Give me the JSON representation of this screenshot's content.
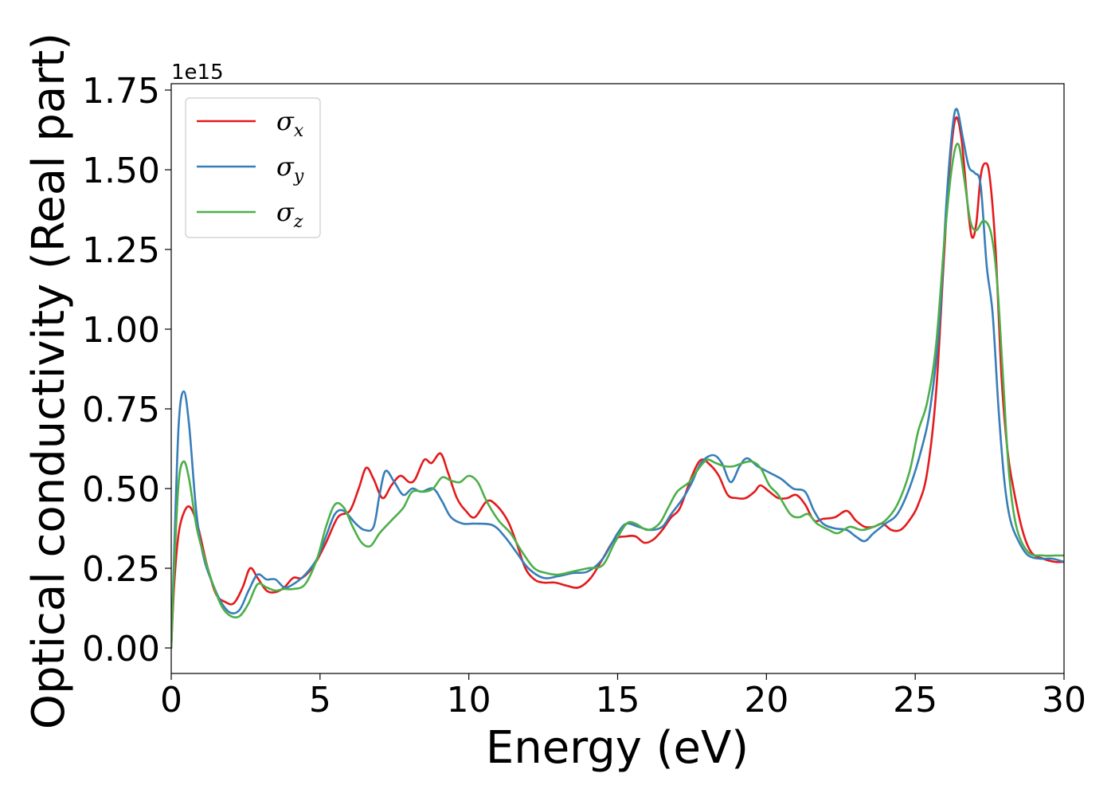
{
  "chart_data": {
    "type": "line",
    "xlabel": "Energy (eV)",
    "ylabel": "Optical conductivity (Real part)",
    "y_offset_label": "1e15",
    "xlim": [
      0,
      30
    ],
    "ylim": [
      -0.08,
      1.77
    ],
    "x_ticks": [
      0,
      5,
      10,
      15,
      20,
      25,
      30
    ],
    "x_tick_labels": [
      "0",
      "5",
      "10",
      "15",
      "20",
      "25",
      "30"
    ],
    "y_ticks": [
      0.0,
      0.25,
      0.5,
      0.75,
      1.0,
      1.25,
      1.5,
      1.75
    ],
    "y_tick_labels": [
      "0.00",
      "0.25",
      "0.50",
      "0.75",
      "1.00",
      "1.25",
      "1.50",
      "1.75"
    ],
    "grid": false,
    "legend_position": "top-left",
    "series": [
      {
        "name": "σ",
        "subscript": "x",
        "color": "#e41a1c",
        "points": [
          [
            0,
            0
          ],
          [
            0.1,
            0.2
          ],
          [
            0.25,
            0.36
          ],
          [
            0.45,
            0.43
          ],
          [
            0.65,
            0.44
          ],
          [
            0.9,
            0.38
          ],
          [
            1.2,
            0.26
          ],
          [
            1.5,
            0.17
          ],
          [
            1.8,
            0.145
          ],
          [
            2.1,
            0.14
          ],
          [
            2.4,
            0.19
          ],
          [
            2.65,
            0.25
          ],
          [
            2.9,
            0.22
          ],
          [
            3.2,
            0.18
          ],
          [
            3.5,
            0.175
          ],
          [
            3.8,
            0.19
          ],
          [
            4.1,
            0.22
          ],
          [
            4.4,
            0.22
          ],
          [
            4.8,
            0.26
          ],
          [
            5.2,
            0.33
          ],
          [
            5.6,
            0.41
          ],
          [
            6.0,
            0.43
          ],
          [
            6.3,
            0.5
          ],
          [
            6.55,
            0.565
          ],
          [
            6.8,
            0.53
          ],
          [
            7.1,
            0.47
          ],
          [
            7.4,
            0.51
          ],
          [
            7.7,
            0.54
          ],
          [
            8.0,
            0.52
          ],
          [
            8.2,
            0.53
          ],
          [
            8.5,
            0.59
          ],
          [
            8.75,
            0.58
          ],
          [
            9.05,
            0.61
          ],
          [
            9.3,
            0.55
          ],
          [
            9.6,
            0.47
          ],
          [
            9.9,
            0.43
          ],
          [
            10.2,
            0.41
          ],
          [
            10.6,
            0.46
          ],
          [
            10.9,
            0.45
          ],
          [
            11.3,
            0.4
          ],
          [
            11.6,
            0.33
          ],
          [
            11.9,
            0.25
          ],
          [
            12.2,
            0.215
          ],
          [
            12.5,
            0.205
          ],
          [
            12.9,
            0.205
          ],
          [
            13.3,
            0.195
          ],
          [
            13.7,
            0.19
          ],
          [
            14.1,
            0.22
          ],
          [
            14.5,
            0.28
          ],
          [
            14.9,
            0.34
          ],
          [
            15.3,
            0.35
          ],
          [
            15.6,
            0.35
          ],
          [
            15.9,
            0.33
          ],
          [
            16.2,
            0.34
          ],
          [
            16.5,
            0.37
          ],
          [
            16.8,
            0.41
          ],
          [
            17.1,
            0.44
          ],
          [
            17.5,
            0.54
          ],
          [
            17.8,
            0.59
          ],
          [
            18.1,
            0.575
          ],
          [
            18.4,
            0.54
          ],
          [
            18.7,
            0.48
          ],
          [
            19.0,
            0.47
          ],
          [
            19.3,
            0.47
          ],
          [
            19.6,
            0.49
          ],
          [
            19.8,
            0.51
          ],
          [
            20.1,
            0.49
          ],
          [
            20.4,
            0.47
          ],
          [
            20.7,
            0.47
          ],
          [
            21.0,
            0.48
          ],
          [
            21.3,
            0.45
          ],
          [
            21.6,
            0.4
          ],
          [
            21.9,
            0.405
          ],
          [
            22.3,
            0.41
          ],
          [
            22.7,
            0.43
          ],
          [
            23.0,
            0.4
          ],
          [
            23.3,
            0.38
          ],
          [
            23.6,
            0.38
          ],
          [
            23.9,
            0.39
          ],
          [
            24.2,
            0.37
          ],
          [
            24.5,
            0.37
          ],
          [
            24.8,
            0.4
          ],
          [
            25.1,
            0.45
          ],
          [
            25.4,
            0.55
          ],
          [
            25.7,
            0.8
          ],
          [
            25.95,
            1.2
          ],
          [
            26.15,
            1.5
          ],
          [
            26.35,
            1.66
          ],
          [
            26.55,
            1.6
          ],
          [
            26.75,
            1.4
          ],
          [
            26.9,
            1.29
          ],
          [
            27.05,
            1.33
          ],
          [
            27.2,
            1.48
          ],
          [
            27.35,
            1.52
          ],
          [
            27.5,
            1.48
          ],
          [
            27.7,
            1.25
          ],
          [
            27.9,
            0.85
          ],
          [
            28.1,
            0.62
          ],
          [
            28.3,
            0.5
          ],
          [
            28.6,
            0.37
          ],
          [
            28.9,
            0.3
          ],
          [
            29.3,
            0.28
          ],
          [
            29.7,
            0.27
          ],
          [
            30,
            0.27
          ]
        ]
      },
      {
        "name": "σ",
        "subscript": "y",
        "color": "#377eb8",
        "points": [
          [
            0,
            0
          ],
          [
            0.1,
            0.3
          ],
          [
            0.25,
            0.7
          ],
          [
            0.42,
            0.805
          ],
          [
            0.6,
            0.7
          ],
          [
            0.85,
            0.42
          ],
          [
            1.1,
            0.28
          ],
          [
            1.4,
            0.2
          ],
          [
            1.7,
            0.14
          ],
          [
            2.0,
            0.11
          ],
          [
            2.3,
            0.12
          ],
          [
            2.6,
            0.18
          ],
          [
            2.9,
            0.23
          ],
          [
            3.2,
            0.215
          ],
          [
            3.5,
            0.215
          ],
          [
            3.8,
            0.19
          ],
          [
            4.1,
            0.2
          ],
          [
            4.5,
            0.23
          ],
          [
            4.9,
            0.28
          ],
          [
            5.2,
            0.35
          ],
          [
            5.5,
            0.42
          ],
          [
            5.8,
            0.43
          ],
          [
            6.2,
            0.39
          ],
          [
            6.5,
            0.37
          ],
          [
            6.8,
            0.38
          ],
          [
            7.0,
            0.48
          ],
          [
            7.2,
            0.555
          ],
          [
            7.5,
            0.52
          ],
          [
            7.8,
            0.48
          ],
          [
            8.1,
            0.5
          ],
          [
            8.4,
            0.49
          ],
          [
            8.8,
            0.5
          ],
          [
            9.1,
            0.46
          ],
          [
            9.4,
            0.41
          ],
          [
            9.8,
            0.39
          ],
          [
            10.2,
            0.39
          ],
          [
            10.8,
            0.385
          ],
          [
            11.2,
            0.35
          ],
          [
            11.6,
            0.3
          ],
          [
            12.0,
            0.25
          ],
          [
            12.5,
            0.22
          ],
          [
            13.0,
            0.225
          ],
          [
            13.5,
            0.235
          ],
          [
            14.0,
            0.24
          ],
          [
            14.5,
            0.28
          ],
          [
            15.0,
            0.36
          ],
          [
            15.3,
            0.39
          ],
          [
            15.7,
            0.38
          ],
          [
            16.1,
            0.37
          ],
          [
            16.5,
            0.38
          ],
          [
            16.8,
            0.42
          ],
          [
            17.2,
            0.47
          ],
          [
            17.5,
            0.52
          ],
          [
            17.8,
            0.58
          ],
          [
            18.2,
            0.605
          ],
          [
            18.5,
            0.58
          ],
          [
            18.8,
            0.52
          ],
          [
            19.1,
            0.57
          ],
          [
            19.35,
            0.595
          ],
          [
            19.7,
            0.57
          ],
          [
            20.1,
            0.55
          ],
          [
            20.5,
            0.53
          ],
          [
            20.9,
            0.5
          ],
          [
            21.3,
            0.49
          ],
          [
            21.6,
            0.43
          ],
          [
            21.9,
            0.39
          ],
          [
            22.3,
            0.375
          ],
          [
            22.7,
            0.37
          ],
          [
            23.0,
            0.35
          ],
          [
            23.3,
            0.335
          ],
          [
            23.6,
            0.36
          ],
          [
            24.0,
            0.39
          ],
          [
            24.4,
            0.42
          ],
          [
            24.8,
            0.5
          ],
          [
            25.2,
            0.62
          ],
          [
            25.5,
            0.75
          ],
          [
            25.8,
            1.0
          ],
          [
            26.05,
            1.4
          ],
          [
            26.25,
            1.63
          ],
          [
            26.4,
            1.69
          ],
          [
            26.6,
            1.6
          ],
          [
            26.8,
            1.51
          ],
          [
            27.0,
            1.49
          ],
          [
            27.2,
            1.45
          ],
          [
            27.4,
            1.2
          ],
          [
            27.6,
            1.05
          ],
          [
            27.8,
            0.75
          ],
          [
            28.0,
            0.52
          ],
          [
            28.2,
            0.4
          ],
          [
            28.5,
            0.33
          ],
          [
            28.8,
            0.29
          ],
          [
            29.2,
            0.28
          ],
          [
            29.6,
            0.28
          ],
          [
            30,
            0.27
          ]
        ]
      },
      {
        "name": "σ",
        "subscript": "z",
        "color": "#4daf4a",
        "points": [
          [
            0,
            0
          ],
          [
            0.1,
            0.25
          ],
          [
            0.25,
            0.52
          ],
          [
            0.42,
            0.585
          ],
          [
            0.6,
            0.53
          ],
          [
            0.85,
            0.38
          ],
          [
            1.1,
            0.29
          ],
          [
            1.4,
            0.2
          ],
          [
            1.7,
            0.13
          ],
          [
            2.0,
            0.1
          ],
          [
            2.3,
            0.1
          ],
          [
            2.6,
            0.14
          ],
          [
            2.9,
            0.2
          ],
          [
            3.2,
            0.19
          ],
          [
            3.5,
            0.18
          ],
          [
            3.8,
            0.185
          ],
          [
            4.1,
            0.185
          ],
          [
            4.5,
            0.2
          ],
          [
            4.9,
            0.28
          ],
          [
            5.2,
            0.38
          ],
          [
            5.5,
            0.45
          ],
          [
            5.8,
            0.44
          ],
          [
            6.1,
            0.38
          ],
          [
            6.4,
            0.33
          ],
          [
            6.7,
            0.32
          ],
          [
            7.0,
            0.36
          ],
          [
            7.4,
            0.4
          ],
          [
            7.8,
            0.44
          ],
          [
            8.1,
            0.49
          ],
          [
            8.5,
            0.49
          ],
          [
            8.8,
            0.5
          ],
          [
            9.1,
            0.535
          ],
          [
            9.4,
            0.525
          ],
          [
            9.7,
            0.52
          ],
          [
            10.0,
            0.54
          ],
          [
            10.3,
            0.52
          ],
          [
            10.6,
            0.46
          ],
          [
            11.0,
            0.4
          ],
          [
            11.4,
            0.36
          ],
          [
            11.8,
            0.3
          ],
          [
            12.2,
            0.25
          ],
          [
            12.6,
            0.235
          ],
          [
            13.0,
            0.23
          ],
          [
            13.5,
            0.24
          ],
          [
            14.0,
            0.25
          ],
          [
            14.5,
            0.26
          ],
          [
            14.9,
            0.33
          ],
          [
            15.3,
            0.39
          ],
          [
            15.6,
            0.39
          ],
          [
            16.0,
            0.37
          ],
          [
            16.4,
            0.39
          ],
          [
            16.7,
            0.44
          ],
          [
            17.0,
            0.49
          ],
          [
            17.4,
            0.52
          ],
          [
            17.7,
            0.56
          ],
          [
            18.0,
            0.59
          ],
          [
            18.3,
            0.58
          ],
          [
            18.6,
            0.57
          ],
          [
            18.9,
            0.57
          ],
          [
            19.2,
            0.58
          ],
          [
            19.5,
            0.585
          ],
          [
            19.8,
            0.565
          ],
          [
            20.1,
            0.51
          ],
          [
            20.4,
            0.48
          ],
          [
            20.8,
            0.42
          ],
          [
            21.1,
            0.41
          ],
          [
            21.4,
            0.42
          ],
          [
            21.7,
            0.39
          ],
          [
            22.1,
            0.37
          ],
          [
            22.4,
            0.36
          ],
          [
            22.8,
            0.38
          ],
          [
            23.2,
            0.37
          ],
          [
            23.6,
            0.38
          ],
          [
            24.0,
            0.4
          ],
          [
            24.4,
            0.45
          ],
          [
            24.8,
            0.55
          ],
          [
            25.1,
            0.68
          ],
          [
            25.4,
            0.77
          ],
          [
            25.7,
            0.95
          ],
          [
            26.0,
            1.3
          ],
          [
            26.25,
            1.52
          ],
          [
            26.45,
            1.58
          ],
          [
            26.65,
            1.47
          ],
          [
            26.85,
            1.34
          ],
          [
            27.05,
            1.31
          ],
          [
            27.3,
            1.34
          ],
          [
            27.55,
            1.3
          ],
          [
            27.75,
            1.15
          ],
          [
            27.95,
            0.85
          ],
          [
            28.15,
            0.55
          ],
          [
            28.4,
            0.38
          ],
          [
            28.8,
            0.3
          ],
          [
            29.3,
            0.29
          ],
          [
            29.7,
            0.29
          ],
          [
            30,
            0.29
          ]
        ]
      }
    ]
  }
}
